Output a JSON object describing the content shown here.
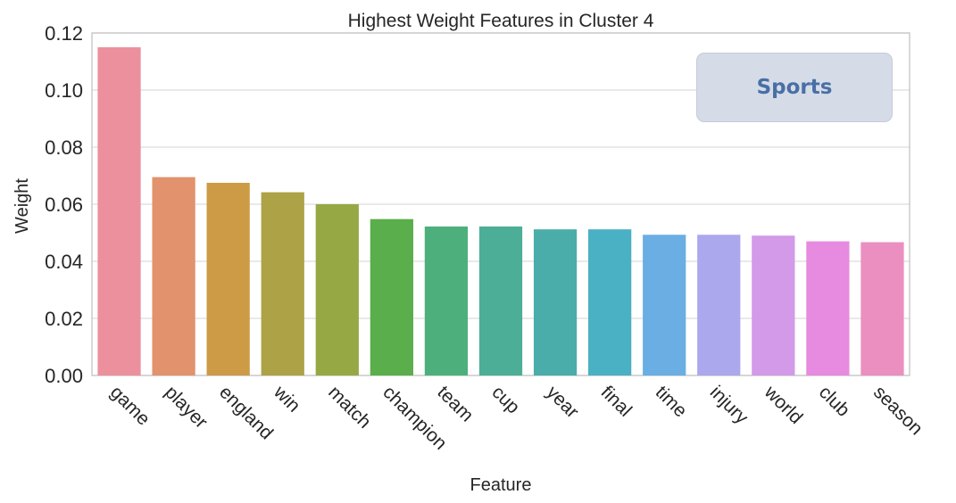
{
  "chart_data": {
    "type": "bar",
    "title": "Highest Weight Features in Cluster 4",
    "xlabel": "Feature",
    "ylabel": "Weight",
    "ylim": [
      0,
      0.12
    ],
    "yticks": [
      "0.00",
      "0.02",
      "0.04",
      "0.06",
      "0.08",
      "0.10",
      "0.12"
    ],
    "categories": [
      "game",
      "player",
      "england",
      "win",
      "match",
      "champion",
      "team",
      "cup",
      "year",
      "final",
      "time",
      "injury",
      "world",
      "club",
      "season"
    ],
    "values": [
      0.115,
      0.0695,
      0.0675,
      0.0642,
      0.06,
      0.0548,
      0.0522,
      0.0522,
      0.0512,
      0.0512,
      0.0493,
      0.0493,
      0.049,
      0.047,
      0.0467
    ],
    "colors": [
      "#ec909e",
      "#e2926c",
      "#cd9a46",
      "#ada245",
      "#95a844",
      "#5aae4b",
      "#4db07c",
      "#4cae97",
      "#4aadaa",
      "#4ab0c4",
      "#6aaee3",
      "#aba8ed",
      "#d29ae8",
      "#e68be0",
      "#ea8fc0"
    ],
    "grid": true,
    "annotation": "Sports"
  }
}
